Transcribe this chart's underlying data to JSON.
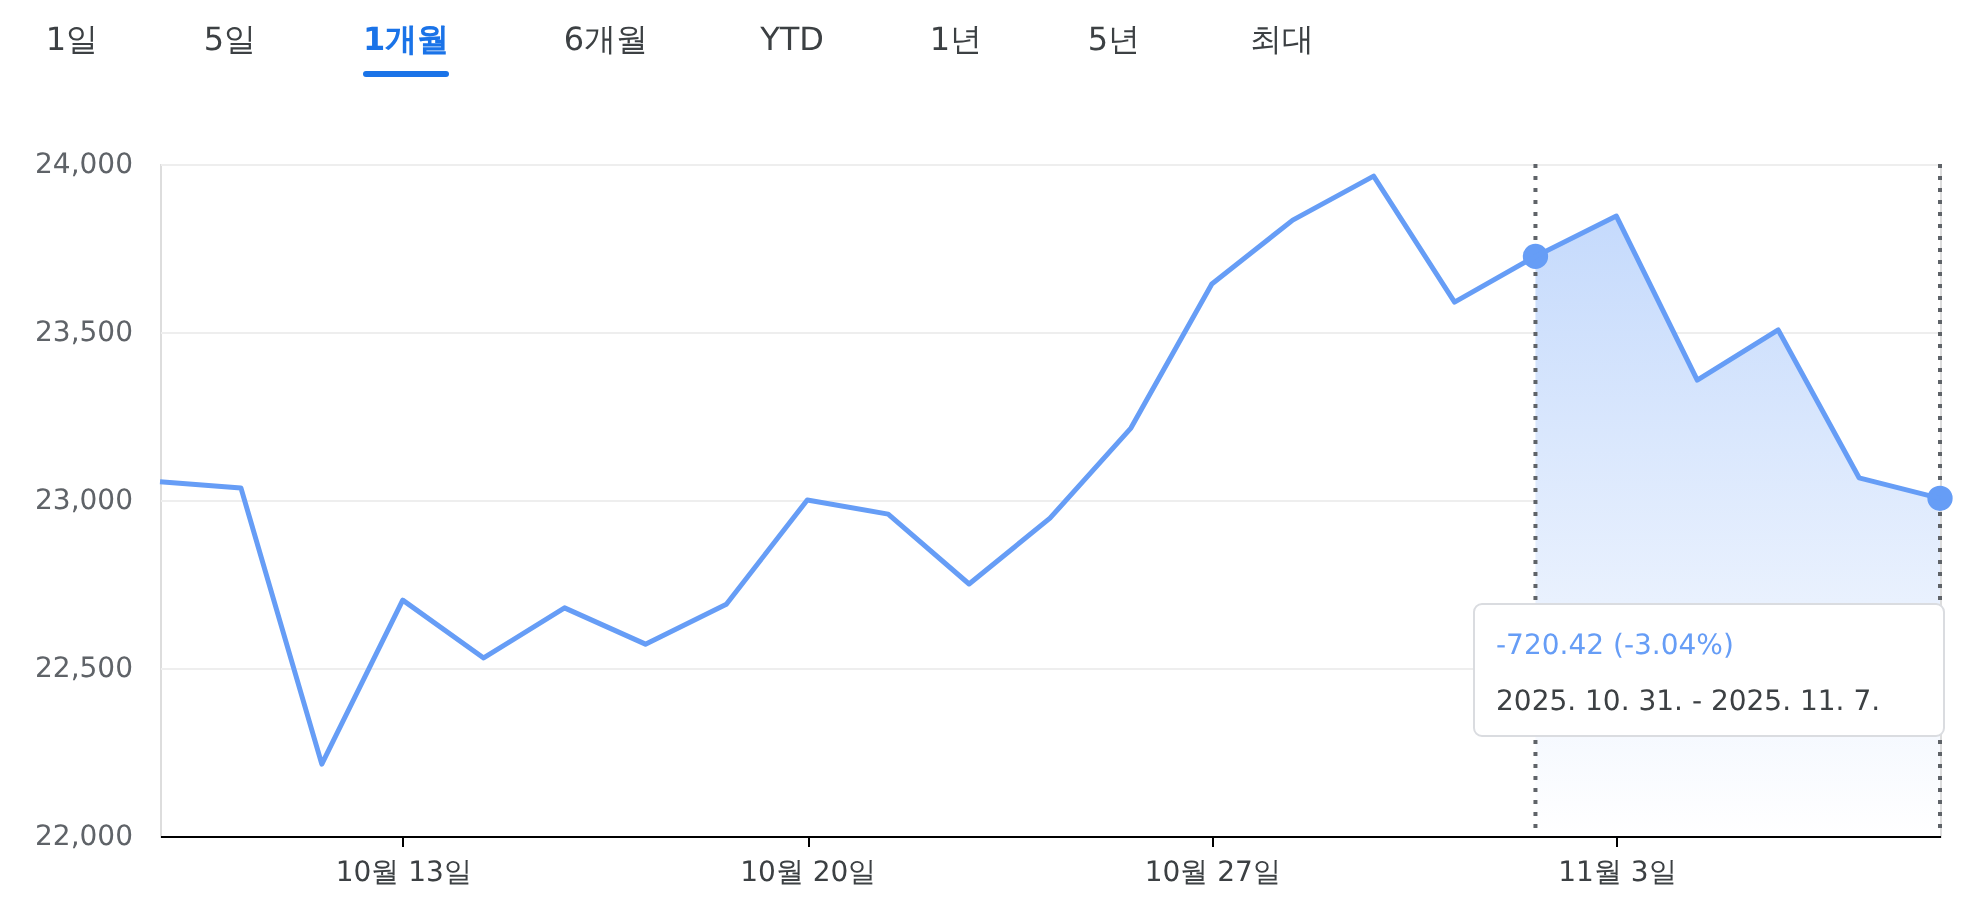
{
  "chart_data": {
    "type": "line",
    "categories": [
      null,
      null,
      null,
      "10월 13일",
      null,
      null,
      null,
      null,
      "10월 20일",
      null,
      null,
      null,
      null,
      "10월 27일",
      null,
      null,
      null,
      null,
      "11월 3일",
      null,
      null,
      null,
      null
    ],
    "series": [
      {
        "color": "#669df6",
        "values": [
          23054,
          23036,
          22214,
          22702,
          22530,
          22679,
          22571,
          22690,
          23000,
          22958,
          22750,
          22946,
          23214,
          23643,
          23833,
          23964,
          23589,
          23725,
          23845,
          23357,
          23506,
          23066,
          23005
        ]
      },
      {
        "type": "area",
        "color": "#c5dafc",
        "values": [
          null,
          null,
          null,
          null,
          null,
          null,
          null,
          null,
          null,
          null,
          null,
          null,
          null,
          null,
          null,
          null,
          null,
          23725,
          23845,
          23357,
          23506,
          23066,
          23005
        ]
      }
    ],
    "ylim": [
      22000,
      24000
    ],
    "yticks": [
      {
        "value": 22000,
        "label": "22,000"
      },
      {
        "value": 22500,
        "label": "22,500"
      },
      {
        "value": 23000,
        "label": "23,000"
      },
      {
        "value": 23500,
        "label": "23,500"
      },
      {
        "value": 24000,
        "label": "24,000"
      }
    ],
    "grid": "y",
    "annotations": [
      "1일",
      "5일",
      "1개월",
      "6개월",
      "YTD",
      "1년",
      "5년",
      "최대",
      "-720.42 (-3.04%)",
      "2025. 10. 31. - 2025. 11. 7."
    ]
  }
}
